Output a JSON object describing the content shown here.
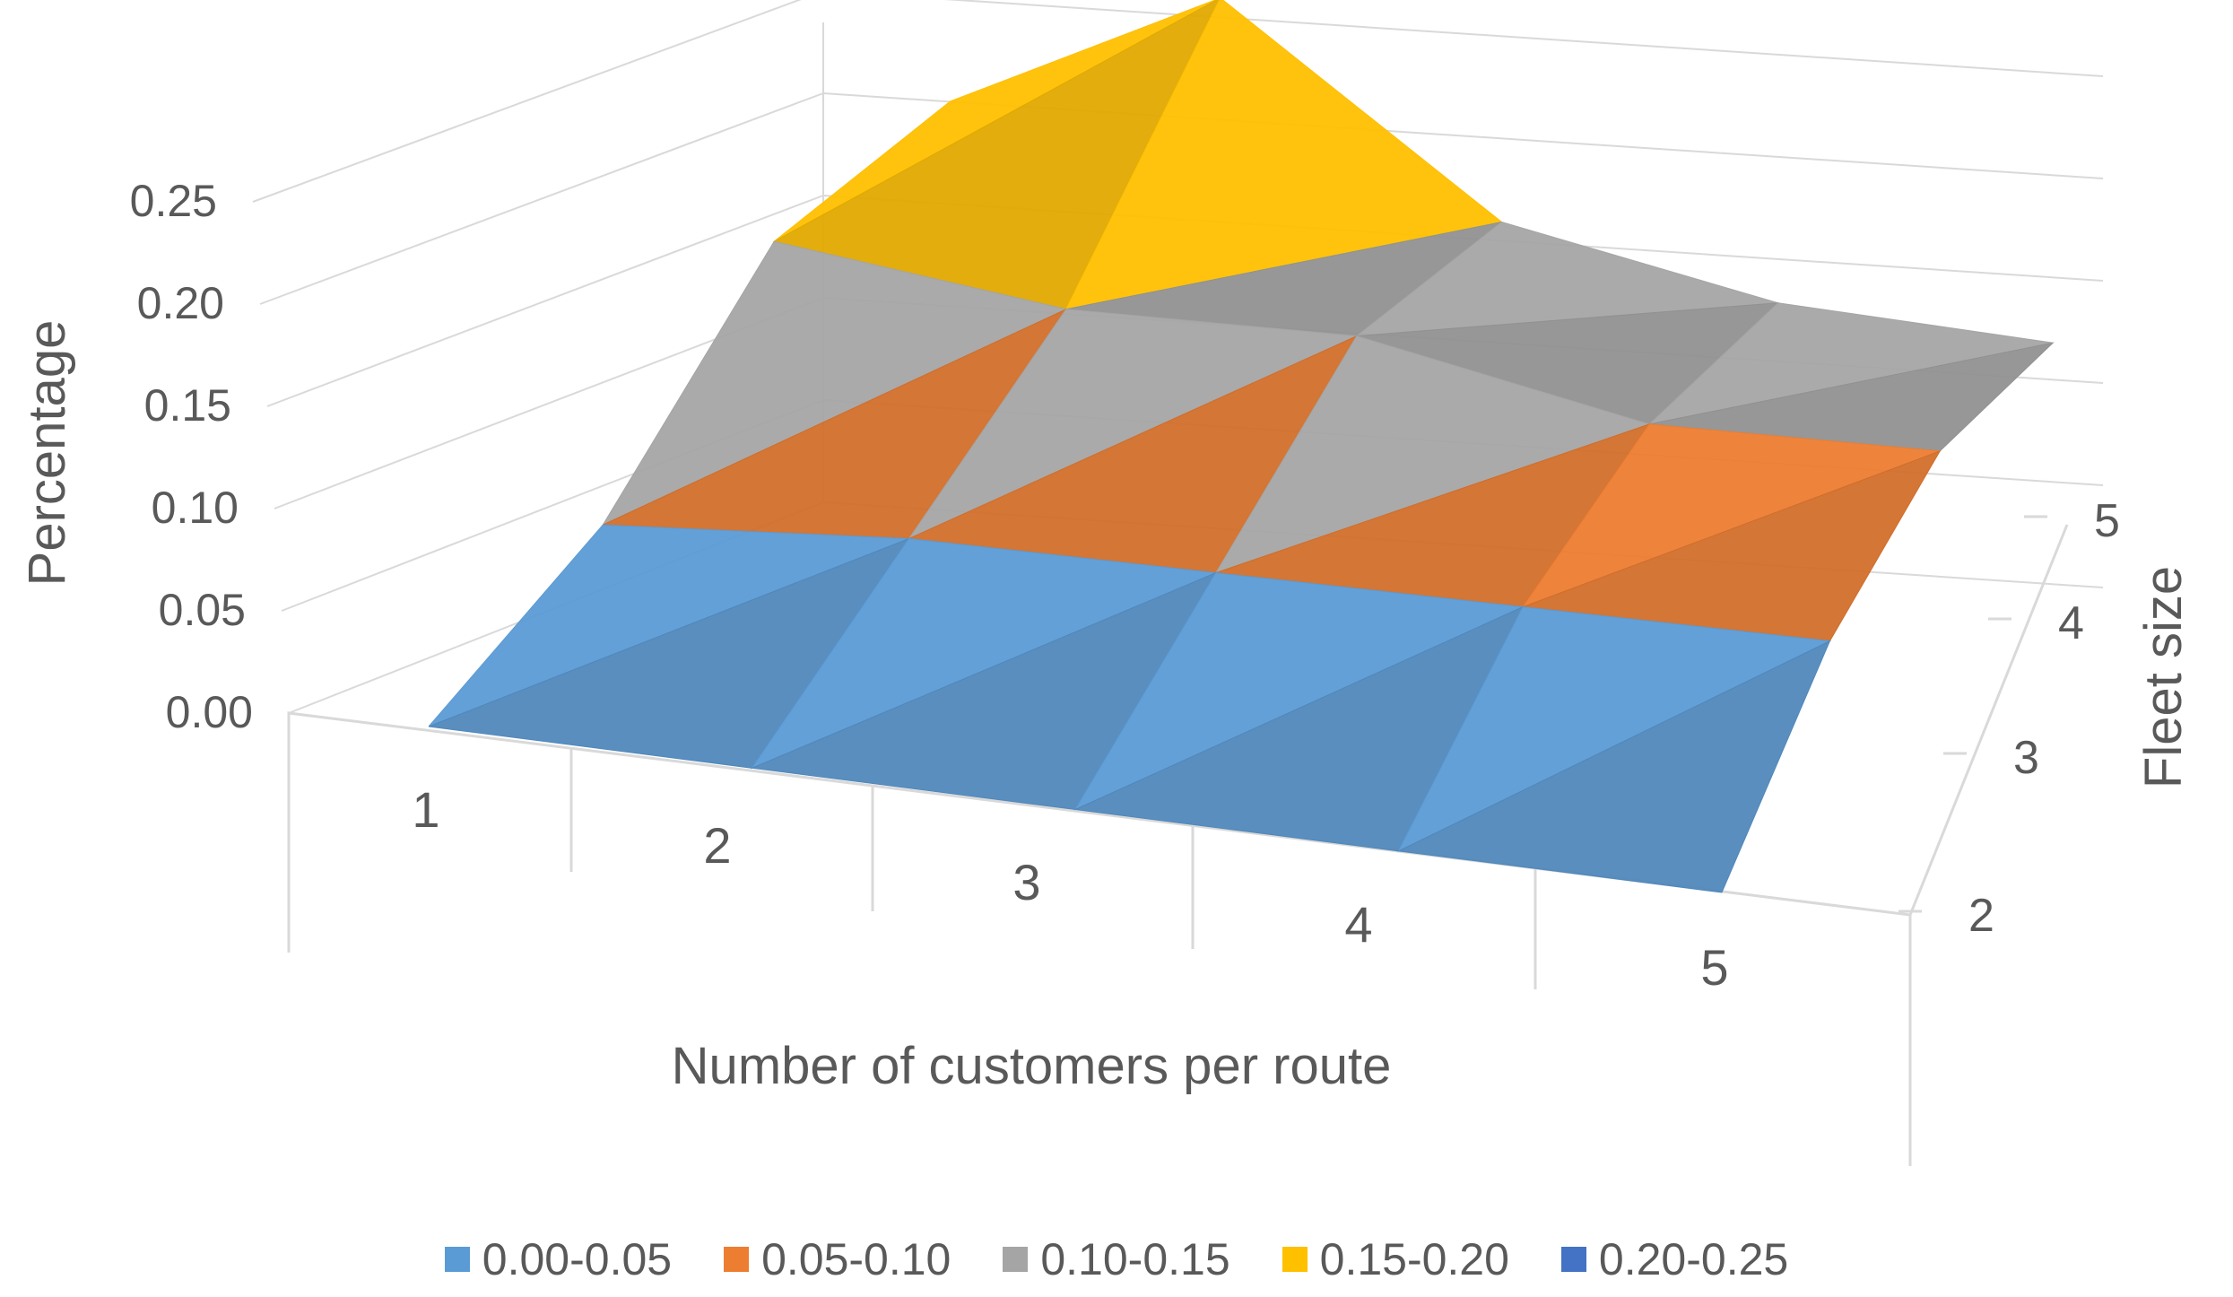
{
  "chart_data": {
    "type": "surface",
    "title": "",
    "xlabel": "Number of customers per route",
    "ylabel": "Fleet size",
    "zlabel": "Percentage",
    "x": [
      1,
      2,
      3,
      4,
      5
    ],
    "y": [
      2,
      3,
      4,
      5
    ],
    "x_tick_labels": [
      "1",
      "2",
      "3",
      "4",
      "5"
    ],
    "y_tick_labels": [
      "2",
      "3",
      "4",
      "5"
    ],
    "z_tick_labels": [
      "0.00",
      "0.05",
      "0.10",
      "0.15",
      "0.20",
      "0.25"
    ],
    "zlim": [
      0,
      0.25
    ],
    "grid": true,
    "legend_position": "bottom",
    "values": [
      [
        0.0,
        0.0,
        0.0,
        0.0,
        0.0
      ],
      [
        0.06,
        0.07,
        0.07,
        0.07,
        0.07
      ],
      [
        0.16,
        0.14,
        0.14,
        0.11,
        0.11
      ],
      [
        0.19,
        0.25,
        0.15,
        0.12,
        0.11
      ]
    ],
    "bands": [
      {
        "name": "0.00-0.05",
        "color": "#5B9BD5"
      },
      {
        "name": "0.05-0.10",
        "color": "#ED7D31"
      },
      {
        "name": "0.10-0.15",
        "color": "#A5A5A5"
      },
      {
        "name": "0.15-0.20",
        "color": "#FFC000"
      },
      {
        "name": "0.20-0.25",
        "color": "#4472C4"
      }
    ]
  }
}
